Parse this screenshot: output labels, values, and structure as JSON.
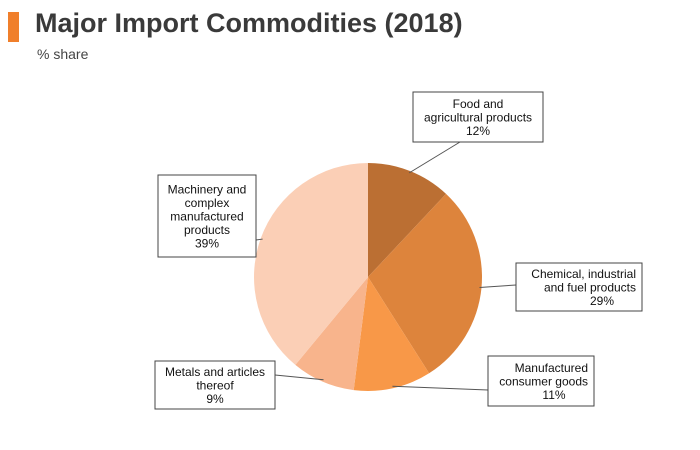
{
  "header": {
    "title": "Major Import Commodities (2018)",
    "subtitle": "% share",
    "accent_color": "#f07f2b"
  },
  "chart_data": {
    "type": "pie",
    "title": "Major Import Commodities (2018)",
    "subtitle": "% share",
    "unit": "%",
    "slices": [
      {
        "name": "Food and agricultural products",
        "label_lines": [
          "Food and",
          "agricultural products"
        ],
        "value": 12,
        "value_label": "12%",
        "color": "#bb6f33"
      },
      {
        "name": "Chemical, industrial and fuel products",
        "label_lines": [
          "Chemical, industrial",
          "and fuel products"
        ],
        "value": 29,
        "value_label": "29%",
        "color": "#dd843c"
      },
      {
        "name": "Manufactured consumer goods",
        "label_lines": [
          "Manufactured",
          "consumer goods"
        ],
        "value": 11,
        "value_label": "11%",
        "color": "#f89848"
      },
      {
        "name": "Metals and articles thereof",
        "label_lines": [
          "Metals and articles",
          "thereof"
        ],
        "value": 9,
        "value_label": "9%",
        "color": "#f8b48c"
      },
      {
        "name": "Machinery and complex manufactured products",
        "label_lines": [
          "Machinery and",
          "complex",
          "manufactured",
          "products"
        ],
        "value": 39,
        "value_label": "39%",
        "color": "#fbcfb6"
      }
    ]
  }
}
